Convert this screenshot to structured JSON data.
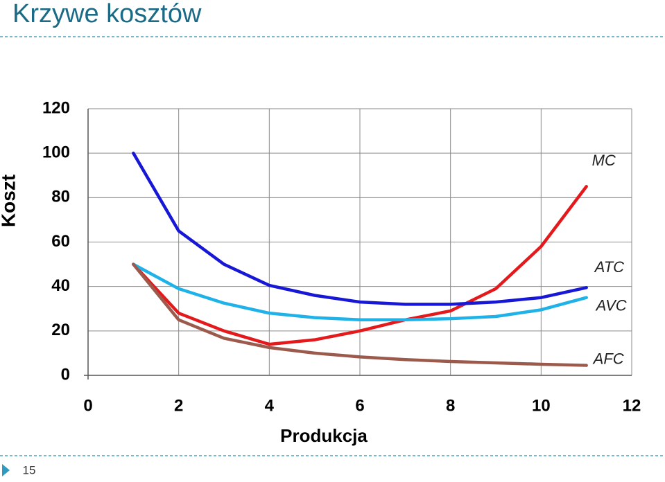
{
  "slide": {
    "title": "Krzywe kosztów",
    "page_number": "15"
  },
  "chart_data": {
    "type": "line",
    "y_label": "Koszt",
    "x_label": "Produkcja",
    "x": [
      1,
      2,
      3,
      4,
      5,
      6,
      7,
      8,
      9,
      10,
      11
    ],
    "series": [
      {
        "name": "MC",
        "color": "#e3191c",
        "values": [
          50,
          28,
          20,
          14,
          16,
          20,
          25,
          29,
          39,
          58,
          85
        ]
      },
      {
        "name": "ATC",
        "color": "#1717d6",
        "values": [
          100,
          65,
          50,
          40.5,
          36,
          33,
          32,
          32,
          33,
          35,
          39.5
        ]
      },
      {
        "name": "AVC",
        "color": "#1eb2e8",
        "values": [
          50,
          39,
          32.5,
          28,
          26,
          25,
          25,
          25.5,
          26.5,
          29.5,
          35
        ]
      },
      {
        "name": "AFC",
        "color": "#9c5a4c",
        "values": [
          50,
          25,
          16.7,
          12.5,
          10,
          8.3,
          7.1,
          6.25,
          5.6,
          5,
          4.5
        ]
      }
    ],
    "xlim": [
      0,
      12
    ],
    "xticks": [
      0,
      2,
      4,
      6,
      8,
      10,
      12
    ],
    "ylim": [
      0,
      120
    ],
    "yticks": [
      0,
      20,
      40,
      60,
      80,
      100,
      120
    ],
    "grid": true
  }
}
